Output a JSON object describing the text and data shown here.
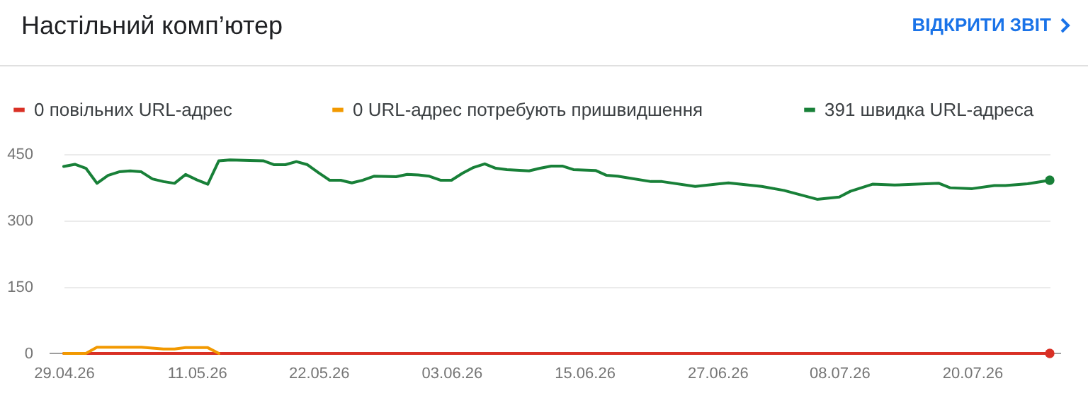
{
  "chart_data": {
    "type": "line",
    "title": "Настільний комп’ютер",
    "annotations": [
      "ВІДКРИТИ ЗВІТ"
    ],
    "xlim": [
      "--04-29",
      "--07-27"
    ],
    "xticks": [
      {
        "value": "--04-29",
        "label": "29.04.26"
      },
      {
        "value": "--05-11",
        "label": "11.05.26"
      },
      {
        "value": "--05-22",
        "label": "22.05.26"
      },
      {
        "value": "--06-03",
        "label": "03.06.26"
      },
      {
        "value": "--06-15",
        "label": "15.06.26"
      },
      {
        "value": "--06-27",
        "label": "27.06.26"
      },
      {
        "value": "--07-08",
        "label": "08.07.26"
      },
      {
        "value": "--07-20",
        "label": "20.07.26"
      }
    ],
    "ylim": [
      0,
      450
    ],
    "yticks": [
      0,
      150,
      300,
      450
    ],
    "grid": "y",
    "legend": "top left",
    "line_style": "solid",
    "series": [
      {
        "name": "0 повільних URL-адрес",
        "color": "#d93025",
        "x": [
          "--04-29",
          "--07-27"
        ],
        "values": [
          0,
          0
        ]
      },
      {
        "name": "0 URL-адрес потребують пришвидшення",
        "color": "#f29900",
        "x": [
          "--04-29",
          "--05-01",
          "--05-02",
          "--05-06",
          "--05-08",
          "--05-09",
          "--05-10",
          "--05-12",
          "--05-13"
        ],
        "values": [
          0,
          0,
          14,
          14,
          10,
          10,
          13,
          13,
          0
        ]
      },
      {
        "name": "391 швидка URL-адреса",
        "color": "#188038",
        "x": [
          "--04-29",
          "--04-30",
          "--05-01",
          "--05-02",
          "--05-03",
          "--05-04",
          "--05-05",
          "--05-06",
          "--05-07",
          "--05-08",
          "--05-09",
          "--05-10",
          "--05-11",
          "--05-12",
          "--05-13",
          "--05-14",
          "--05-17",
          "--05-18",
          "--05-19",
          "--05-20",
          "--05-21",
          "--05-22",
          "--05-23",
          "--05-24",
          "--05-25",
          "--05-26",
          "--05-27",
          "--05-29",
          "--05-30",
          "--05-31",
          "--06-01",
          "--06-02",
          "--06-03",
          "--06-04",
          "--06-05",
          "--06-06",
          "--06-07",
          "--06-08",
          "--06-10",
          "--06-11",
          "--06-12",
          "--06-13",
          "--06-14",
          "--06-16",
          "--06-17",
          "--06-18",
          "--06-21",
          "--06-22",
          "--06-25",
          "--06-28",
          "--07-01",
          "--07-03",
          "--07-06",
          "--07-08",
          "--07-09",
          "--07-11",
          "--07-13",
          "--07-17",
          "--07-18",
          "--07-20",
          "--07-22",
          "--07-23",
          "--07-25",
          "--07-27"
        ],
        "values": [
          422,
          427,
          418,
          384,
          402,
          410,
          412,
          410,
          394,
          388,
          384,
          404,
          392,
          382,
          435,
          437,
          435,
          426,
          426,
          433,
          426,
          408,
          391,
          391,
          385,
          391,
          400,
          399,
          404,
          403,
          400,
          391,
          391,
          407,
          420,
          428,
          418,
          415,
          412,
          418,
          423,
          423,
          415,
          413,
          402,
          400,
          388,
          388,
          377,
          385,
          377,
          368,
          348,
          353,
          366,
          382,
          380,
          384,
          374,
          372,
          379,
          379,
          383,
          391
        ]
      }
    ]
  }
}
